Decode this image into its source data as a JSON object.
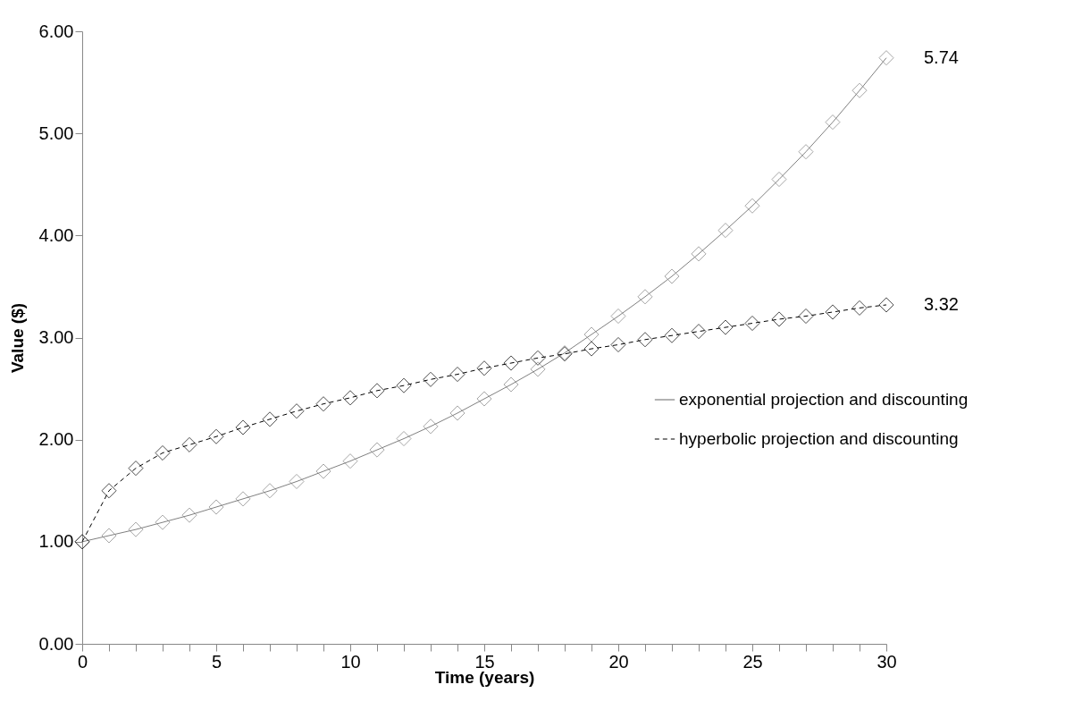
{
  "chart_data": {
    "type": "line",
    "xlabel": "Time (years)",
    "ylabel": "Value ($)",
    "x": [
      0,
      1,
      2,
      3,
      4,
      5,
      6,
      7,
      8,
      9,
      10,
      11,
      12,
      13,
      14,
      15,
      16,
      17,
      18,
      19,
      20,
      21,
      22,
      23,
      24,
      25,
      26,
      27,
      28,
      29,
      30
    ],
    "series": [
      {
        "name": "exponential projection and discounting",
        "color": "#7f7f7f",
        "line_style": "solid",
        "values": [
          1.0,
          1.06,
          1.12,
          1.19,
          1.26,
          1.34,
          1.42,
          1.5,
          1.59,
          1.69,
          1.79,
          1.9,
          2.01,
          2.13,
          2.26,
          2.4,
          2.54,
          2.69,
          2.85,
          3.03,
          3.21,
          3.4,
          3.6,
          3.82,
          4.05,
          4.29,
          4.55,
          4.82,
          5.11,
          5.42,
          5.74
        ],
        "value_labels": [
          null,
          null,
          null,
          null,
          null,
          null,
          null,
          null,
          null,
          null,
          null,
          null,
          null,
          null,
          null,
          null,
          null,
          null,
          null,
          null,
          null,
          null,
          null,
          null,
          null,
          null,
          null,
          null,
          null,
          null,
          "5.74"
        ]
      },
      {
        "name": "hyperbolic projection and discounting",
        "color": "#000000",
        "line_style": "dashed",
        "values": [
          1.0,
          1.5,
          1.72,
          1.87,
          1.95,
          2.03,
          2.12,
          2.2,
          2.28,
          2.35,
          2.41,
          2.48,
          2.53,
          2.59,
          2.64,
          2.7,
          2.75,
          2.8,
          2.84,
          2.89,
          2.93,
          2.98,
          3.02,
          3.06,
          3.1,
          3.14,
          3.18,
          3.21,
          3.25,
          3.29,
          3.32
        ],
        "value_labels": [
          null,
          null,
          null,
          null,
          null,
          null,
          null,
          null,
          null,
          null,
          null,
          null,
          null,
          null,
          null,
          null,
          null,
          null,
          null,
          null,
          null,
          null,
          null,
          null,
          null,
          null,
          null,
          null,
          null,
          null,
          "3.32"
        ]
      }
    ],
    "xlim": [
      0,
      30
    ],
    "xticks": [
      0,
      {
        "value": 1,
        "label": null
      },
      {
        "value": 2,
        "label": null
      },
      {
        "value": 3,
        "label": null
      },
      {
        "value": 4,
        "label": null
      },
      5,
      {
        "value": 6,
        "label": null
      },
      {
        "value": 7,
        "label": null
      },
      {
        "value": 8,
        "label": null
      },
      {
        "value": 9,
        "label": null
      },
      10,
      {
        "value": 11,
        "label": null
      },
      {
        "value": 12,
        "label": null
      },
      {
        "value": 13,
        "label": null
      },
      {
        "value": 14,
        "label": null
      },
      15,
      {
        "value": 16,
        "label": null
      },
      {
        "value": 17,
        "label": null
      },
      {
        "value": 18,
        "label": null
      },
      {
        "value": 19,
        "label": null
      },
      20,
      {
        "value": 21,
        "label": null
      },
      {
        "value": 22,
        "label": null
      },
      {
        "value": 23,
        "label": null
      },
      {
        "value": 24,
        "label": null
      },
      25,
      {
        "value": 26,
        "label": null
      },
      {
        "value": 27,
        "label": null
      },
      {
        "value": 28,
        "label": null
      },
      {
        "value": 29,
        "label": null
      },
      30
    ],
    "ylim": [
      0,
      6
    ],
    "yticks": [
      {
        "value": 0,
        "label": "0.00"
      },
      {
        "value": 1,
        "label": "1.00"
      },
      {
        "value": 2,
        "label": "2.00"
      },
      {
        "value": 3,
        "label": "3.00"
      },
      {
        "value": 4,
        "label": "4.00"
      },
      {
        "value": 5,
        "label": "5.00"
      },
      {
        "value": 6,
        "label": "6.00"
      }
    ],
    "grid": false,
    "legend": "right",
    "marker": "diamond"
  }
}
